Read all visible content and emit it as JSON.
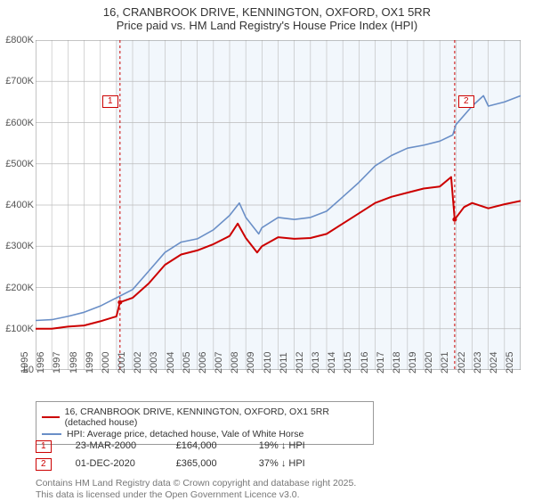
{
  "title": {
    "line1": "16, CRANBROOK DRIVE, KENNINGTON, OXFORD, OX1 5RR",
    "line2": "Price paid vs. HM Land Registry's House Price Index (HPI)"
  },
  "chart": {
    "type": "line",
    "background_color": "#ffffff",
    "plot_background_color": "#f2f7fc",
    "plot_start_year": 2000,
    "grid_color": "#bbbbbb",
    "axis_color": "#888888",
    "label_color": "#555555",
    "label_fontsize": 11,
    "x": {
      "min": 1995,
      "max": 2025,
      "ticks": [
        1995,
        1996,
        1997,
        1998,
        1999,
        2000,
        2001,
        2002,
        2003,
        2004,
        2005,
        2006,
        2007,
        2008,
        2009,
        2010,
        2011,
        2012,
        2013,
        2014,
        2015,
        2016,
        2017,
        2018,
        2019,
        2020,
        2021,
        2022,
        2023,
        2024,
        2025
      ]
    },
    "y": {
      "min": 0,
      "max": 800000,
      "ticks": [
        0,
        100000,
        200000,
        300000,
        400000,
        500000,
        600000,
        700000,
        800000
      ],
      "labels": [
        "£0",
        "£100K",
        "£200K",
        "£300K",
        "£400K",
        "£500K",
        "£600K",
        "£700K",
        "£800K"
      ]
    },
    "markers": [
      {
        "n": 1,
        "year": 2000.22,
        "color": "#cc0000",
        "label_pos": {
          "x": 75,
          "y": 62
        }
      },
      {
        "n": 2,
        "year": 2020.92,
        "color": "#cc0000",
        "label_pos": {
          "x": 475,
          "y": 62
        }
      }
    ],
    "series": [
      {
        "name": "price_paid",
        "label": "16, CRANBROOK DRIVE, KENNINGTON, OXFORD, OX1 5RR (detached house)",
        "color": "#cc0000",
        "width": 2,
        "data": [
          [
            1995,
            100000
          ],
          [
            1996,
            100000
          ],
          [
            1997,
            105000
          ],
          [
            1998,
            108000
          ],
          [
            1999,
            118000
          ],
          [
            2000,
            130000
          ],
          [
            2000.22,
            164000
          ],
          [
            2001,
            175000
          ],
          [
            2002,
            210000
          ],
          [
            2003,
            255000
          ],
          [
            2004,
            280000
          ],
          [
            2005,
            290000
          ],
          [
            2006,
            305000
          ],
          [
            2007,
            325000
          ],
          [
            2007.5,
            355000
          ],
          [
            2008,
            320000
          ],
          [
            2008.7,
            285000
          ],
          [
            2009,
            300000
          ],
          [
            2010,
            322000
          ],
          [
            2011,
            318000
          ],
          [
            2012,
            320000
          ],
          [
            2013,
            330000
          ],
          [
            2014,
            355000
          ],
          [
            2015,
            380000
          ],
          [
            2016,
            405000
          ],
          [
            2017,
            420000
          ],
          [
            2018,
            430000
          ],
          [
            2019,
            440000
          ],
          [
            2020,
            445000
          ],
          [
            2020.7,
            468000
          ],
          [
            2020.92,
            365000
          ],
          [
            2021.5,
            395000
          ],
          [
            2022,
            405000
          ],
          [
            2023,
            392000
          ],
          [
            2024,
            402000
          ],
          [
            2025,
            410000
          ]
        ]
      },
      {
        "name": "hpi",
        "label": "HPI: Average price, detached house, Vale of White Horse",
        "color": "#6a8fc7",
        "width": 1.6,
        "data": [
          [
            1995,
            120000
          ],
          [
            1996,
            122000
          ],
          [
            1997,
            130000
          ],
          [
            1998,
            140000
          ],
          [
            1999,
            155000
          ],
          [
            2000,
            175000
          ],
          [
            2001,
            195000
          ],
          [
            2002,
            240000
          ],
          [
            2003,
            285000
          ],
          [
            2004,
            310000
          ],
          [
            2005,
            318000
          ],
          [
            2006,
            340000
          ],
          [
            2007,
            375000
          ],
          [
            2007.6,
            405000
          ],
          [
            2008,
            370000
          ],
          [
            2008.8,
            330000
          ],
          [
            2009,
            345000
          ],
          [
            2010,
            370000
          ],
          [
            2011,
            365000
          ],
          [
            2012,
            370000
          ],
          [
            2013,
            385000
          ],
          [
            2014,
            420000
          ],
          [
            2015,
            455000
          ],
          [
            2016,
            495000
          ],
          [
            2017,
            520000
          ],
          [
            2018,
            538000
          ],
          [
            2019,
            545000
          ],
          [
            2020,
            555000
          ],
          [
            2020.8,
            570000
          ],
          [
            2021,
            595000
          ],
          [
            2022,
            640000
          ],
          [
            2022.7,
            665000
          ],
          [
            2023,
            640000
          ],
          [
            2024,
            650000
          ],
          [
            2025,
            665000
          ]
        ]
      }
    ]
  },
  "legend": {
    "border_color": "#999999"
  },
  "footnotes": [
    {
      "n": 1,
      "date": "23-MAR-2000",
      "price": "£164,000",
      "delta": "19% ↓ HPI",
      "color": "#cc0000"
    },
    {
      "n": 2,
      "date": "01-DEC-2020",
      "price": "£365,000",
      "delta": "37% ↓ HPI",
      "color": "#cc0000"
    }
  ],
  "copyright": {
    "line1": "Contains HM Land Registry data © Crown copyright and database right 2025.",
    "line2": "This data is licensed under the Open Government Licence v3.0."
  }
}
